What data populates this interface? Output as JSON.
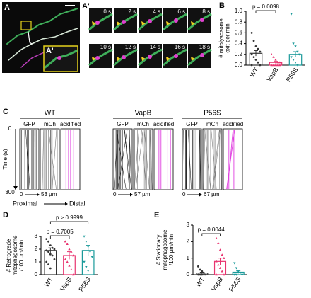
{
  "panels": {
    "A": {
      "label": "A",
      "inset_label": "A'"
    },
    "A_prime": {
      "label": "A'",
      "times": [
        "0 s",
        "2 s",
        "4 s",
        "6 s",
        "8 s",
        "10 s",
        "12 s",
        "14 s",
        "16 s",
        "18 s"
      ]
    },
    "C": {
      "label": "C",
      "time_label": "Time (s)",
      "time_ticks": [
        "0",
        "300"
      ],
      "proximal": "Proximal",
      "distal": "Distal",
      "groups": [
        {
          "name": "WT",
          "channels": [
            "GFP",
            "mCh",
            "acidified"
          ],
          "scale_start": "0",
          "scale_end": "53 µm"
        },
        {
          "name": "VapB",
          "channels": [
            "GFP",
            "mCh",
            "acidified"
          ],
          "scale_start": "0",
          "scale_end": "57 µm"
        },
        {
          "name": "P56S",
          "channels": [
            "GFP",
            "mCh",
            "acidified"
          ],
          "scale_start": "0",
          "scale_end": "67 µm"
        }
      ]
    }
  },
  "chart_data": [
    {
      "type": "bar",
      "panel": "B",
      "ylabel": [
        "# mitolysosome",
        "exit per min"
      ],
      "categories": [
        "WT",
        "VapB",
        "P56S"
      ],
      "colors": [
        "#333333",
        "#e8336f",
        "#1a9a9a"
      ],
      "values": [
        0.22,
        0.05,
        0.2
      ],
      "errors": [
        0.05,
        0.02,
        0.05
      ],
      "points": [
        [
          0.6,
          0.45,
          0.35,
          0.3,
          0.25,
          0.2,
          0.15,
          0.1,
          0.05,
          0.0,
          0.0
        ],
        [
          0.2,
          0.15,
          0.1,
          0.05,
          0.05,
          0.0,
          0.0,
          0.0,
          0.0,
          0.0
        ],
        [
          0.95,
          0.4,
          0.35,
          0.25,
          0.2,
          0.15,
          0.1,
          0.05,
          0.0
        ]
      ],
      "ylim": [
        0,
        1.0
      ],
      "yticks": [
        {
          "value": 0,
          "label": "0.0"
        },
        {
          "value": 0.2,
          "label": "0.2"
        },
        {
          "value": 0.4,
          "label": "0.4"
        },
        {
          "value": 0.6,
          "label": "0.6"
        },
        {
          "value": 0.8,
          "label": "0.8"
        },
        {
          "value": 1.0,
          "label": "1.0"
        }
      ],
      "annotations": [
        "p = 0.0098"
      ]
    },
    {
      "type": "bar",
      "panel": "D",
      "ylabel": [
        "# Retrograde",
        "mitophagosome",
        "/100 µm/min"
      ],
      "categories": [
        "WT",
        "VapB",
        "P56S"
      ],
      "colors": [
        "#333333",
        "#e8336f",
        "#1a9a9a"
      ],
      "values": [
        1.9,
        1.5,
        1.9
      ],
      "errors": [
        0.2,
        0.3,
        0.4
      ],
      "points": [
        [
          2.8,
          2.6,
          2.3,
          2.1,
          2.0,
          1.9,
          1.8,
          1.6,
          1.5,
          1.2,
          1.0,
          0.8,
          0.5
        ],
        [
          2.6,
          2.4,
          2.0,
          1.8,
          1.5,
          1.2,
          1.0,
          0.7,
          0.4,
          0.0
        ],
        [
          3.0,
          2.6,
          2.2,
          1.8,
          1.4,
          1.0,
          0.6,
          0.3
        ]
      ],
      "ylim": [
        0,
        3
      ],
      "yticks": [
        0,
        1,
        2,
        3
      ],
      "annotations": [
        "p > 0.9999",
        "p = 0.7005"
      ]
    },
    {
      "type": "bar",
      "panel": "E",
      "ylabel": [
        "# Stationary",
        "mitophagosome",
        "/100 µm/min"
      ],
      "categories": [
        "WT",
        "VapB",
        "P56S"
      ],
      "colors": [
        "#333333",
        "#e8336f",
        "#1a9a9a"
      ],
      "values": [
        0.1,
        0.8,
        0.15
      ],
      "errors": [
        0.05,
        0.2,
        0.08
      ],
      "points": [
        [
          0.5,
          0.3,
          0.2,
          0.1,
          0.0,
          0.0,
          0.0,
          0.0,
          0.0
        ],
        [
          2.2,
          1.9,
          1.5,
          1.2,
          1.0,
          0.8,
          0.6,
          0.4,
          0.2,
          0.0,
          0.0
        ],
        [
          0.7,
          0.4,
          0.2,
          0.1,
          0.0,
          0.0,
          0.0
        ]
      ],
      "ylim": [
        0,
        3
      ],
      "yticks": [
        0,
        1,
        2,
        3
      ],
      "annotations": [
        "p = 0.0044"
      ]
    }
  ]
}
